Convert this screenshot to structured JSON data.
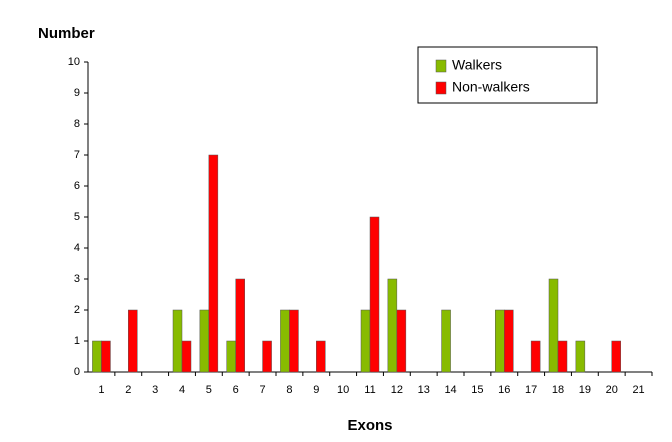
{
  "chart_data": {
    "type": "bar",
    "ylabel": "Number",
    "xlabel": "Exons",
    "categories": [
      "1",
      "2",
      "3",
      "4",
      "5",
      "6",
      "7",
      "8",
      "9",
      "10",
      "11",
      "12",
      "13",
      "14",
      "15",
      "16",
      "17",
      "18",
      "19",
      "20",
      "21"
    ],
    "series": [
      {
        "name": "Walkers",
        "color": "#88bb00",
        "values": [
          1,
          0,
          0,
          2,
          2,
          1,
          0,
          2,
          0,
          0,
          2,
          3,
          0,
          2,
          0,
          2,
          0,
          3,
          1,
          0,
          0
        ]
      },
      {
        "name": "Non-walkers",
        "color": "#ff0000",
        "values": [
          1,
          2,
          0,
          1,
          7,
          3,
          1,
          2,
          1,
          0,
          5,
          2,
          0,
          0,
          0,
          2,
          1,
          1,
          0,
          1,
          0
        ]
      }
    ],
    "ylim": [
      0,
      10
    ],
    "yticks": [
      0,
      1,
      2,
      3,
      4,
      5,
      6,
      7,
      8,
      9,
      10
    ],
    "grid": false,
    "legend": "top-right"
  }
}
